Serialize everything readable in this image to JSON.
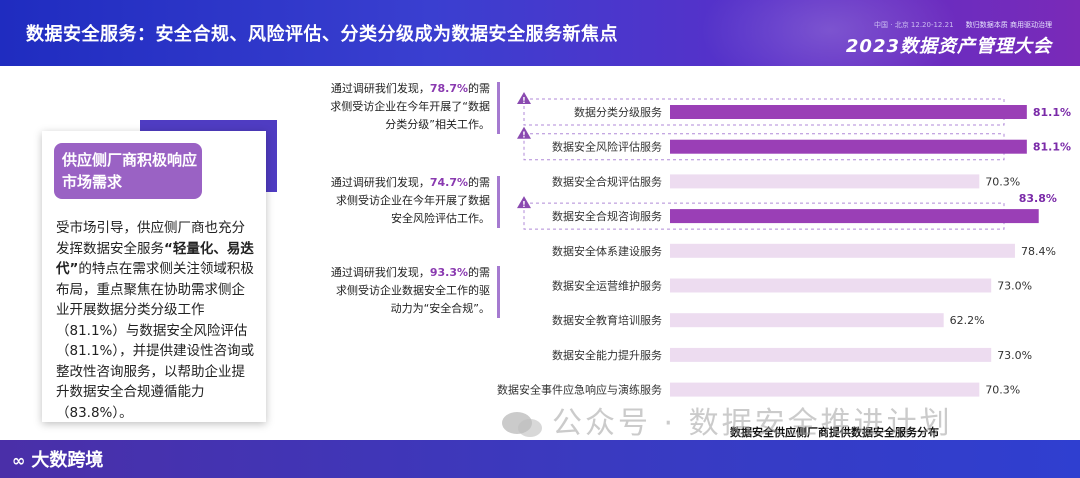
{
  "header": {
    "title": "数据安全服务：安全合规、风险评估、分类分级成为数据安全服务新焦点",
    "event_dates": "中国 · 北京  12.20-12.21",
    "event_tagline": "数归数据本质 商用驱动治理",
    "event_name": "2023数据资产管理大会"
  },
  "card": {
    "tag_line1": "供应侧厂商积极响应",
    "tag_line2": "市场需求",
    "body_pre": "受市场引导，供应侧厂商也充分发挥数据安全服务",
    "body_bold": "“轻量化、易迭代”",
    "body_post": "的特点在需求侧关注领域积极布局，重点聚焦在协助需求侧企业开展数据分类分级工作（81.1%）与数据安全风险评估（81.1%），并提供建设性咨询或整改性咨询服务，以帮助企业提升数据安全合规遵循能力（83.8%）。"
  },
  "callouts": [
    {
      "pre": "通过调研我们发现，",
      "pct": "78.7%",
      "post": "的需求侧受访企业在今年开展了“数据分类分级”相关工作。"
    },
    {
      "pre": "通过调研我们发现，",
      "pct": "74.7%",
      "post": "的需求侧受访企业在今年开展了数据安全风险评估工作。"
    },
    {
      "pre": "通过调研我们发现，",
      "pct": "93.3%",
      "post": "的需求侧受访企业数据安全工作的驱动力为“安全合规”。"
    }
  ],
  "chart_data": {
    "type": "bar",
    "orientation": "horizontal",
    "title": "数据安全供应侧厂商提供数据安全服务分布",
    "categories": [
      "数据分类分级服务",
      "数据安全风险评估服务",
      "数据安全合规评估服务",
      "数据安全合规咨询服务",
      "数据安全体系建设服务",
      "数据安全运营维护服务",
      "数据安全教育培训服务",
      "数据安全能力提升服务",
      "数据安全事件应急响应与演练服务"
    ],
    "values": [
      81.1,
      81.1,
      70.3,
      83.8,
      78.4,
      73.0,
      62.2,
      73.0,
      70.3
    ],
    "value_labels": [
      "81.1%",
      "81.1%",
      "70.3%",
      "83.8%",
      "78.4%",
      "73.0%",
      "62.2%",
      "73.0%",
      "70.3%"
    ],
    "highlighted": [
      true,
      true,
      false,
      true,
      false,
      false,
      false,
      false,
      false
    ],
    "colors": {
      "highlight": "#9a3fb6",
      "normal": "#eddcf0",
      "highlight_label": "#7a2aa8"
    }
  },
  "watermark": "公众号 · 数据安全推进计划",
  "footer": {
    "logo": "大数跨境"
  }
}
